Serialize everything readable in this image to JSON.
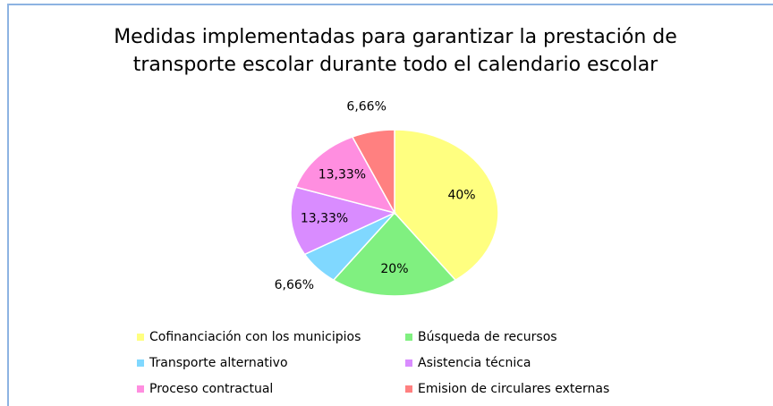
{
  "chart_data": {
    "type": "pie",
    "title": "Medidas implementadas para garantizar la prestación de transporte escolar durante todo el calendario escolar",
    "categories": [
      "Cofinanciación con los municipios",
      "Búsqueda de recursos",
      "Transporte alternativo",
      "Asistencia técnica",
      "Proceso contractual",
      "Emision de circulares externas"
    ],
    "values": [
      40,
      20,
      6.66,
      13.33,
      13.33,
      6.66
    ],
    "value_labels": [
      "40%",
      "20%",
      "6,66%",
      "13,33%",
      "13,33%",
      "6,66%"
    ],
    "colors": [
      "#ffff80",
      "#80f080",
      "#80d8ff",
      "#d98cff",
      "#ff8ee0",
      "#ff8080"
    ],
    "legend": "bottom"
  }
}
